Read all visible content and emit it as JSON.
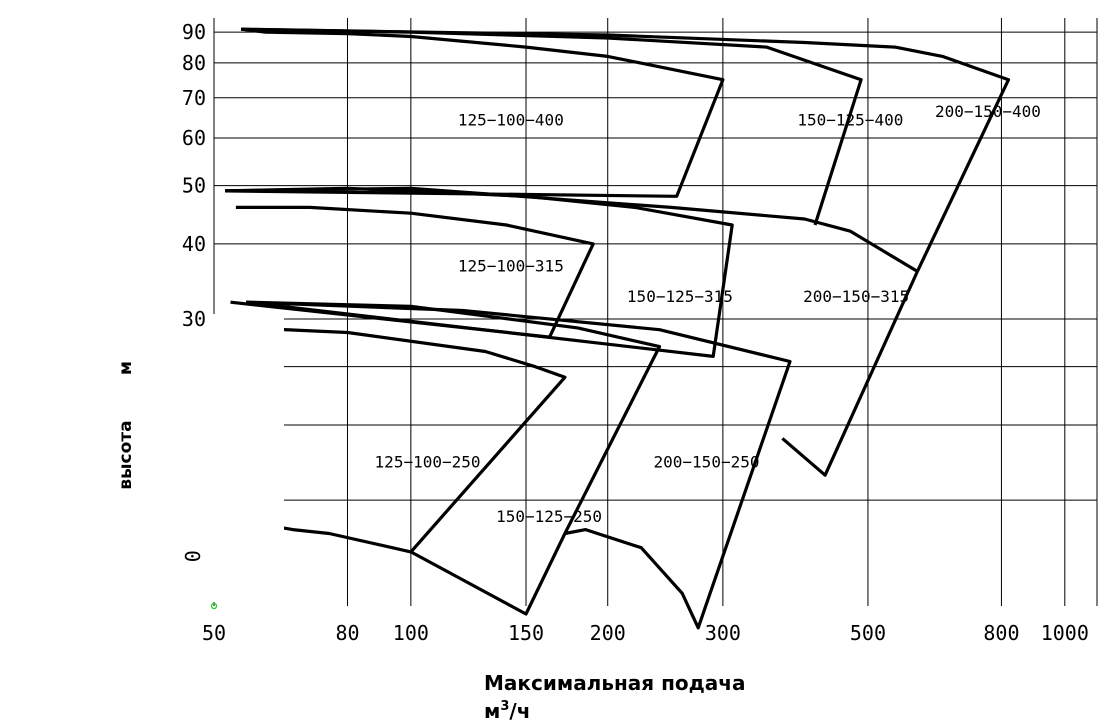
{
  "chart_data": {
    "type": "area",
    "title": "",
    "xlabel": "Максимальная подача",
    "xunit_base": "м",
    "xunit_sup": "3",
    "xunit_tail": "/ч",
    "ylabel": "высота",
    "yunit": "м",
    "xscale": "log",
    "yscale": "log",
    "xlim": [
      50,
      1120
    ],
    "ylim": [
      10,
      95
    ],
    "grid": true,
    "x_ticks": [
      {
        "value": 50,
        "label": "50"
      },
      {
        "value": 80,
        "label": "80"
      },
      {
        "value": 100,
        "label": "100"
      },
      {
        "value": 150,
        "label": "150"
      },
      {
        "value": 200,
        "label": "200"
      },
      {
        "value": 300,
        "label": "300"
      },
      {
        "value": 500,
        "label": "500"
      },
      {
        "value": 800,
        "label": "800"
      },
      {
        "value": 1000,
        "label": "1000"
      }
    ],
    "y_ticks": [
      {
        "value": 30,
        "label": "30"
      },
      {
        "value": 40,
        "label": "40"
      },
      {
        "value": 50,
        "label": "50"
      },
      {
        "value": 60,
        "label": "60"
      },
      {
        "value": 70,
        "label": "70"
      },
      {
        "value": 80,
        "label": "80"
      },
      {
        "value": 90,
        "label": "90"
      }
    ],
    "y_gridlines": [
      15,
      20,
      25,
      30,
      40,
      50,
      60,
      70,
      80,
      90
    ],
    "stray_tick_label": "0",
    "zones": [
      {
        "name": "125-100-400",
        "label_at": [
          118,
          63
        ],
        "outline": [
          [
            55,
            91
          ],
          [
            60,
            90
          ],
          [
            80,
            89.5
          ],
          [
            100,
            88.5
          ],
          [
            150,
            85
          ],
          [
            200,
            82
          ],
          [
            300,
            75
          ],
          [
            255,
            48
          ],
          [
            52,
            49
          ]
        ]
      },
      {
        "name": "150-125-400",
        "label_at": [
          390,
          63
        ],
        "outline": [
          [
            55,
            91
          ],
          [
            100,
            90
          ],
          [
            200,
            88
          ],
          [
            350,
            85
          ],
          [
            488,
            75
          ],
          [
            415,
            43
          ]
        ]
      },
      {
        "name": "200-150-400",
        "label_at": [
          633,
          65
        ],
        "outline": [
          [
            55,
            91
          ],
          [
            200,
            89
          ],
          [
            400,
            86.5
          ],
          [
            550,
            85
          ],
          [
            650,
            82
          ],
          [
            820,
            75
          ],
          [
            595,
            36
          ]
        ]
      },
      {
        "name": "125-100-315",
        "label_at": [
          118,
          36
        ],
        "outline": [
          [
            54,
            46
          ],
          [
            70,
            46
          ],
          [
            100,
            45
          ],
          [
            140,
            43
          ],
          [
            190,
            40
          ],
          [
            163,
            28
          ],
          [
            53,
            32
          ]
        ]
      },
      {
        "name": "150-125-315",
        "label_at": [
          214,
          32
        ],
        "outline": [
          [
            52,
            49
          ],
          [
            80,
            49.5
          ],
          [
            150,
            48
          ],
          [
            220,
            46
          ],
          [
            310,
            43
          ],
          [
            290,
            26
          ],
          [
            56,
            32
          ]
        ]
      },
      {
        "name": "200-150-315",
        "label_at": [
          398,
          32
        ],
        "outline": [
          [
            52,
            49
          ],
          [
            100,
            49.5
          ],
          [
            250,
            46
          ],
          [
            400,
            44
          ],
          [
            470,
            42
          ],
          [
            595,
            36
          ],
          [
            430,
            16.5
          ],
          [
            370,
            19
          ]
        ]
      },
      {
        "name": "125-100-250",
        "label_at": [
          88,
          17
        ],
        "outline": [
          [
            56,
            29
          ],
          [
            80,
            28.5
          ],
          [
            130,
            26.5
          ],
          [
            155,
            25
          ],
          [
            172,
            24
          ],
          [
            100,
            12.3
          ],
          [
            75,
            13.2
          ],
          [
            66,
            13.4
          ],
          [
            52,
            14
          ]
        ]
      },
      {
        "name": "150-125-250",
        "label_at": [
          135,
          13.8
        ],
        "outline": [
          [
            56,
            32
          ],
          [
            100,
            31.5
          ],
          [
            180,
            29
          ],
          [
            240,
            27
          ],
          [
            172,
            13.2
          ],
          [
            150,
            9.7
          ],
          [
            100,
            12.3
          ]
        ]
      },
      {
        "name": "200-150-250",
        "label_at": [
          235,
          17
        ],
        "outline": [
          [
            56,
            32
          ],
          [
            120,
            31
          ],
          [
            240,
            28.8
          ],
          [
            380,
            25.5
          ],
          [
            275,
            9.2
          ],
          [
            260,
            10.5
          ],
          [
            225,
            12.5
          ],
          [
            185,
            13.4
          ],
          [
            172,
            13.2
          ]
        ]
      }
    ]
  }
}
